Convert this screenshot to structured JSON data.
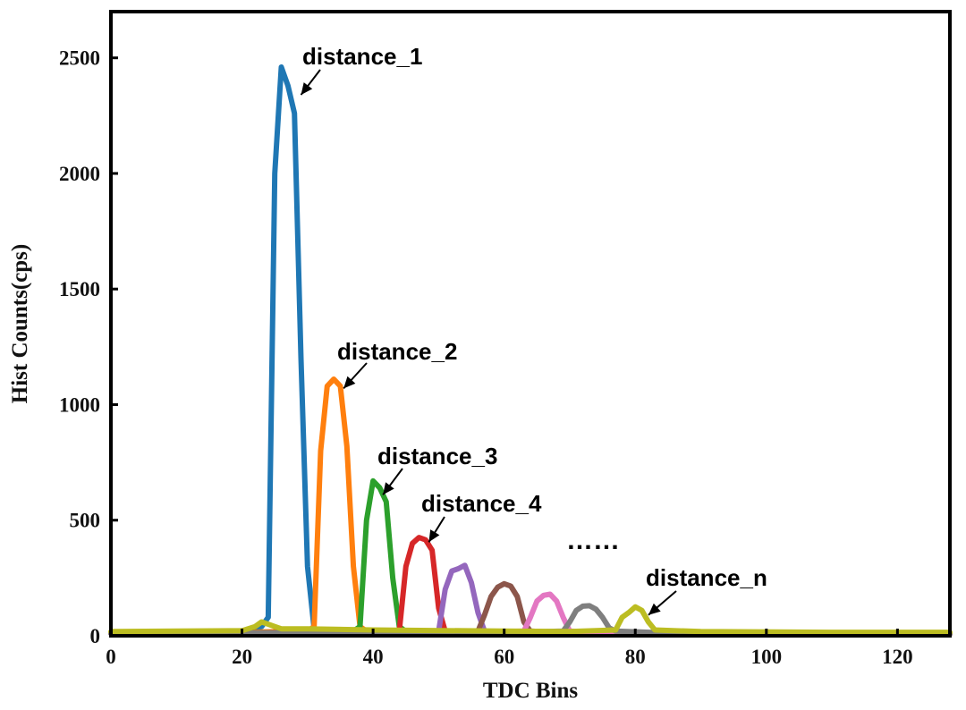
{
  "chart_data": {
    "type": "line",
    "xlabel": "TDC Bins",
    "ylabel": "Hist Counts(cps)",
    "xlim": [
      0,
      128
    ],
    "ylim": [
      0,
      2700
    ],
    "xticks": [
      0,
      20,
      40,
      60,
      80,
      100,
      120
    ],
    "yticks": [
      0,
      500,
      1000,
      1500,
      2000,
      2500
    ],
    "grid": false,
    "legend": "none",
    "series": [
      {
        "color": "#1f77b4",
        "x": [
          0,
          10,
          20,
          22,
          23,
          24,
          25,
          26,
          27,
          28,
          29,
          30,
          31,
          32,
          40,
          60,
          128
        ],
        "y": [
          15,
          18,
          20,
          30,
          40,
          80,
          2000,
          2460,
          2380,
          2260,
          1200,
          300,
          30,
          20,
          15,
          10,
          8
        ]
      },
      {
        "color": "#ff7f0e",
        "x": [
          0,
          20,
          30,
          31,
          32,
          33,
          34,
          35,
          36,
          37,
          38,
          39,
          50,
          128
        ],
        "y": [
          12,
          15,
          20,
          40,
          800,
          1080,
          1110,
          1080,
          820,
          300,
          40,
          20,
          12,
          8
        ]
      },
      {
        "color": "#2ca02c",
        "x": [
          0,
          30,
          37,
          38,
          39,
          40,
          41,
          42,
          43,
          44,
          45,
          55,
          128
        ],
        "y": [
          10,
          14,
          20,
          40,
          500,
          670,
          640,
          580,
          250,
          40,
          18,
          12,
          8
        ]
      },
      {
        "color": "#d62728",
        "x": [
          0,
          40,
          44,
          45,
          46,
          47,
          48,
          49,
          50,
          51,
          60,
          128
        ],
        "y": [
          10,
          14,
          20,
          300,
          400,
          425,
          415,
          370,
          120,
          20,
          12,
          8
        ]
      },
      {
        "color": "#9467bd",
        "x": [
          0,
          45,
          50,
          51,
          52,
          53,
          54,
          55,
          56,
          57,
          65,
          128
        ],
        "y": [
          10,
          14,
          20,
          200,
          280,
          290,
          305,
          230,
          100,
          20,
          12,
          8
        ]
      },
      {
        "color": "#8c564b",
        "x": [
          0,
          50,
          56,
          57,
          58,
          59,
          60,
          61,
          62,
          63,
          64,
          70,
          128
        ],
        "y": [
          10,
          14,
          20,
          90,
          170,
          210,
          225,
          215,
          170,
          60,
          20,
          12,
          8
        ]
      },
      {
        "color": "#e377c2",
        "x": [
          0,
          55,
          63,
          64,
          65,
          66,
          67,
          68,
          69,
          70,
          76,
          128
        ],
        "y": [
          10,
          14,
          20,
          80,
          150,
          175,
          180,
          150,
          80,
          20,
          12,
          8
        ]
      },
      {
        "color": "#7f7f7f",
        "x": [
          0,
          60,
          69,
          70,
          71,
          72,
          73,
          74,
          75,
          76,
          77,
          85,
          128
        ],
        "y": [
          10,
          14,
          20,
          60,
          110,
          128,
          130,
          115,
          80,
          35,
          20,
          12,
          8
        ]
      },
      {
        "color": "#bcbd22",
        "x": [
          0,
          10,
          20,
          22,
          23,
          24,
          25,
          26,
          30,
          40,
          60,
          70,
          77,
          78,
          79,
          80,
          81,
          82,
          83,
          90,
          110,
          128
        ],
        "y": [
          18,
          20,
          22,
          40,
          60,
          50,
          40,
          30,
          30,
          25,
          20,
          18,
          25,
          80,
          100,
          125,
          110,
          60,
          25,
          18,
          15,
          15
        ]
      }
    ],
    "annotations": [
      {
        "text": "distance_1",
        "x": 29,
        "y": 2340
      },
      {
        "text": "distance_2",
        "x": 35.5,
        "y": 1070
      },
      {
        "text": "distance_3",
        "x": 41.5,
        "y": 610
      },
      {
        "text": "distance_4",
        "x": 48.5,
        "y": 405
      },
      {
        "text": "distance_n",
        "x": 82,
        "y": 90
      }
    ],
    "ellipsis_text": "……"
  },
  "colors": {
    "axes": "#000000",
    "background": "#ffffff"
  }
}
